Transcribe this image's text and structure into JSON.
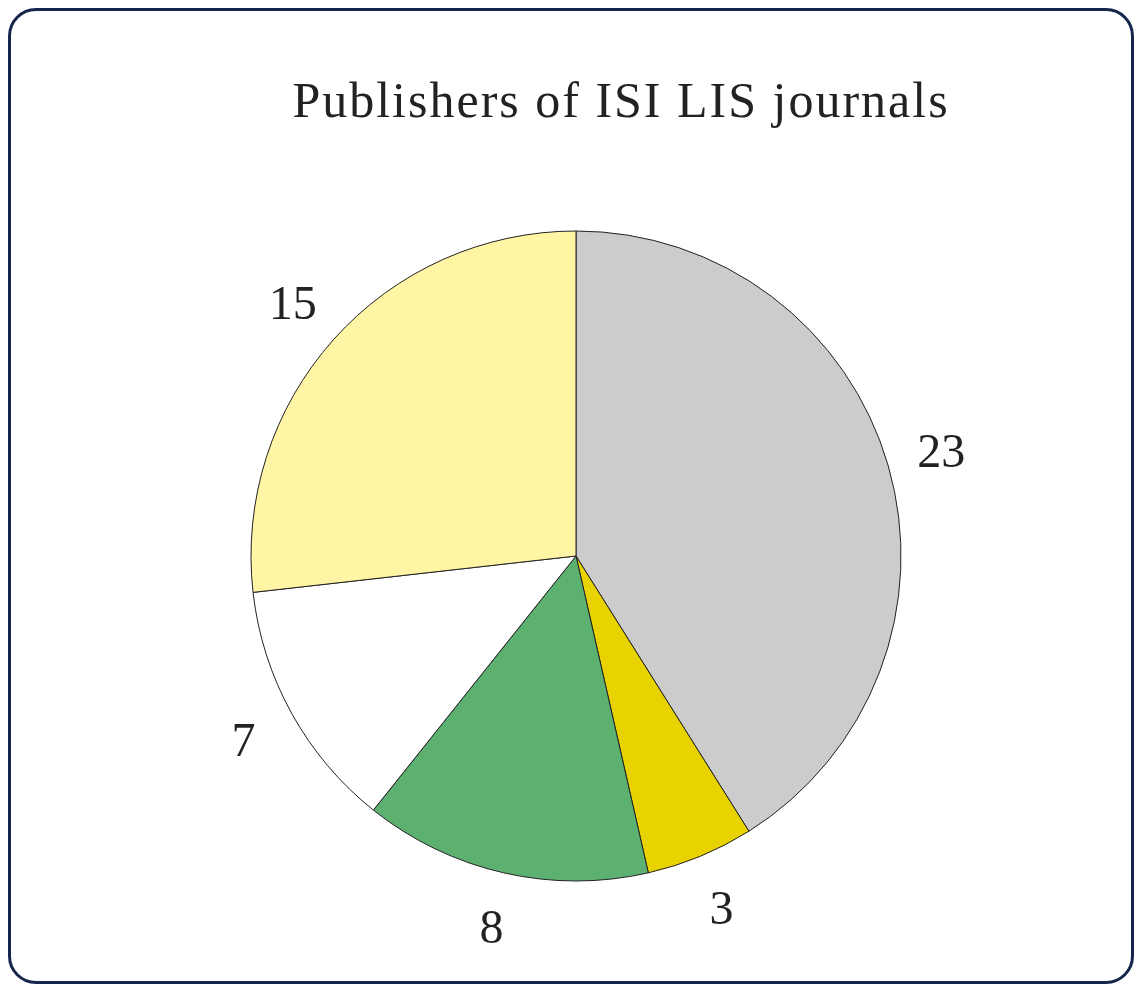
{
  "chart_data": {
    "type": "pie",
    "title": "Publishers of ISI LIS journals",
    "categories": [
      null,
      null,
      null,
      null,
      null
    ],
    "values": [
      23,
      3,
      8,
      7,
      15
    ],
    "colors": [
      "#cccccc",
      "#e8d200",
      "#5db170",
      "#ffffff",
      "#fff5a5"
    ],
    "data_labels": true
  }
}
